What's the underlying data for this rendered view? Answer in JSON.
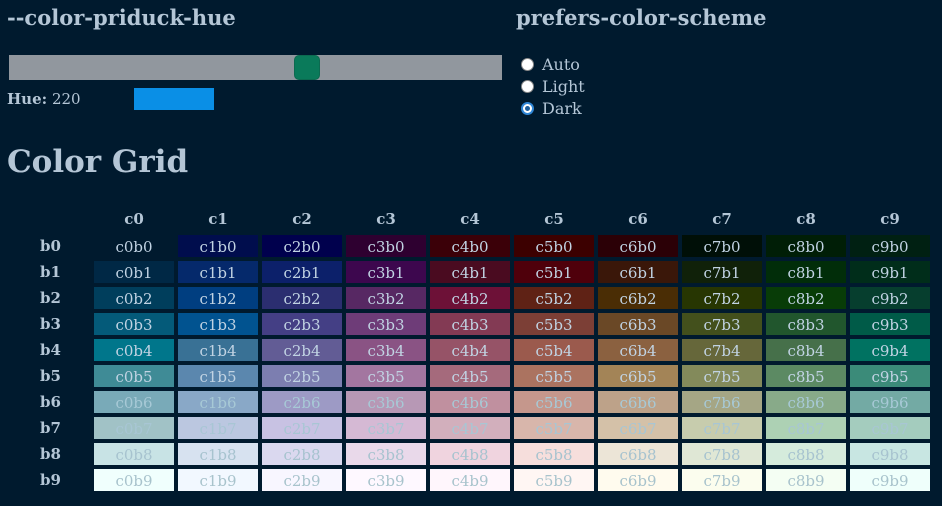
{
  "hue_section": {
    "title": "--color-priduck-hue",
    "hue_label": "Hue:",
    "hue_value": "220",
    "slider_fraction": 0.605,
    "swatch_color": "#0a8fe6"
  },
  "scheme_section": {
    "title": "prefers-color-scheme",
    "options": [
      {
        "label": "Auto",
        "checked": false
      },
      {
        "label": "Light",
        "checked": false
      },
      {
        "label": "Dark",
        "checked": true
      }
    ]
  },
  "grid": {
    "title": "Color Grid",
    "columns": [
      "c0",
      "c1",
      "c2",
      "c3",
      "c4",
      "c5",
      "c6",
      "c7",
      "c8",
      "c9"
    ],
    "rows": [
      "b0",
      "b1",
      "b2",
      "b3",
      "b4",
      "b5",
      "b6",
      "b7",
      "b8",
      "b9"
    ],
    "cells": [
      [
        "c0b0",
        "c1b0",
        "c2b0",
        "c3b0",
        "c4b0",
        "c5b0",
        "c6b0",
        "c7b0",
        "c8b0",
        "c9b0"
      ],
      [
        "c0b1",
        "c1b1",
        "c2b1",
        "c3b1",
        "c4b1",
        "c5b1",
        "c6b1",
        "c7b1",
        "c8b1",
        "c9b1"
      ],
      [
        "c0b2",
        "c1b2",
        "c2b2",
        "c3b2",
        "c4b2",
        "c5b2",
        "c6b2",
        "c7b2",
        "c8b2",
        "c9b2"
      ],
      [
        "c0b3",
        "c1b3",
        "c2b3",
        "c3b3",
        "c4b3",
        "c5b3",
        "c6b3",
        "c7b3",
        "c8b3",
        "c9b3"
      ],
      [
        "c0b4",
        "c1b4",
        "c2b4",
        "c3b4",
        "c4b4",
        "c5b4",
        "c6b4",
        "c7b4",
        "c8b4",
        "c9b4"
      ],
      [
        "c0b5",
        "c1b5",
        "c2b5",
        "c3b5",
        "c4b5",
        "c5b5",
        "c6b5",
        "c7b5",
        "c8b5",
        "c9b5"
      ],
      [
        "c0b6",
        "c1b6",
        "c2b6",
        "c3b6",
        "c4b6",
        "c5b6",
        "c6b6",
        "c7b6",
        "c8b6",
        "c9b6"
      ],
      [
        "c0b7",
        "c1b7",
        "c2b7",
        "c3b7",
        "c4b7",
        "c5b7",
        "c6b7",
        "c7b7",
        "c8b7",
        "c9b7"
      ],
      [
        "c0b8",
        "c1b8",
        "c2b8",
        "c3b8",
        "c4b8",
        "c5b8",
        "c6b8",
        "c7b8",
        "c8b8",
        "c9b8"
      ],
      [
        "c0b9",
        "c1b9",
        "c2b9",
        "c3b9",
        "c4b9",
        "c5b9",
        "c6b9",
        "c7b9",
        "c8b9",
        "c9b9"
      ]
    ],
    "cell_colors": [
      [
        "#001a2e",
        "#000d4d",
        "#00004d",
        "#2e0030",
        "#3b0008",
        "#3c0000",
        "#2b0006",
        "#000f07",
        "#001e06",
        "#002012"
      ],
      [
        "#002845",
        "#05296b",
        "#0c206a",
        "#3d074e",
        "#4a0b20",
        "#4f000b",
        "#3a1709",
        "#102109",
        "#012d09",
        "#002d1a"
      ],
      [
        "#003e5c",
        "#003e80",
        "#2b2e70",
        "#572863",
        "#6d1137",
        "#5f2215",
        "#4a2d05",
        "#273602",
        "#083c07",
        "#063e2e"
      ],
      [
        "#045a79",
        "#015390",
        "#443f85",
        "#6e3c78",
        "#833a54",
        "#7c3f36",
        "#6a4826",
        "#43501c",
        "#21562d",
        "#005b48"
      ],
      [
        "#00768b",
        "#397195",
        "#625c95",
        "#8a5384",
        "#965367",
        "#9b5a4d",
        "#8b6140",
        "#66673a",
        "#46704a",
        "#007261"
      ],
      [
        "#3f8b96",
        "#5b87ae",
        "#7c7eb0",
        "#a376a0",
        "#a56a7c",
        "#ab7360",
        "#a38457",
        "#838a5b",
        "#5c8a63",
        "#3b8b79"
      ],
      [
        "#79aab8",
        "#89a8c7",
        "#9d9ac5",
        "#b798b5",
        "#c0909f",
        "#c5978c",
        "#bda289",
        "#a5a685",
        "#88aa89",
        "#73aaa4"
      ],
      [
        "#a1c2c6",
        "#bbc7e0",
        "#c8c2e3",
        "#d5b9d4",
        "#d2afbc",
        "#d8b6ab",
        "#d4c1a8",
        "#c7ccad",
        "#add1b4",
        "#a4ccbe"
      ],
      [
        "#c8e3e5",
        "#d7e2f0",
        "#dad8ef",
        "#e9d9ea",
        "#f0d4df",
        "#f6dedc",
        "#ece5d7",
        "#dfe7d5",
        "#d5ebdc",
        "#c8e6e2"
      ],
      [
        "#f0fffd",
        "#f2f8ff",
        "#f8f6ff",
        "#fef8ff",
        "#fff6fc",
        "#fff6f3",
        "#fffbee",
        "#fbfdee",
        "#f4fef3",
        "#effffb"
      ]
    ],
    "text_colors": [
      "#c1d3e3",
      "#c1d3e3",
      "#c1d3e3",
      "#c1d3e3",
      "#c1d3e3",
      "#c1d3e3",
      "#a7c9d6",
      "#a8c6d4",
      "#a7c3cf",
      "#a8c3cc"
    ]
  }
}
